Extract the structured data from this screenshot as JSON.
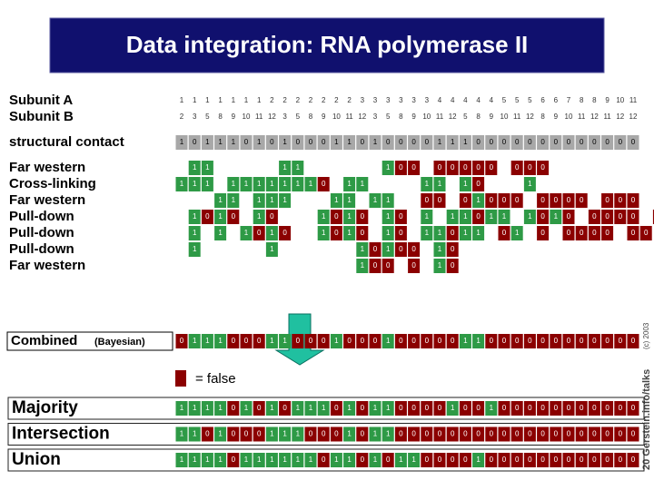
{
  "title": "Data integration: RNA polymerase II",
  "subunit_a": {
    "label": "Subunit A",
    "values": [
      1,
      1,
      1,
      1,
      1,
      1,
      1,
      2,
      2,
      2,
      2,
      2,
      2,
      2,
      3,
      3,
      3,
      3,
      3,
      3,
      4,
      4,
      4,
      4,
      4,
      5,
      5,
      5,
      6,
      6,
      7,
      8,
      8,
      9,
      10,
      11
    ]
  },
  "subunit_b": {
    "label": "Subunit B",
    "values": [
      2,
      3,
      5,
      8,
      9,
      10,
      11,
      12,
      3,
      5,
      8,
      9,
      10,
      11,
      12,
      3,
      5,
      8,
      9,
      10,
      11,
      12,
      5,
      8,
      9,
      10,
      11,
      12,
      8,
      9,
      10,
      11,
      12,
      11,
      12,
      12
    ]
  },
  "structural": {
    "label": "structural contact",
    "cells": "101110101000110100001110000000000000"
  },
  "evidence": [
    {
      "label": "Far western",
      "cells": " 11     11      100 00000 000      "
    },
    {
      "label": "Cross-linking",
      "cells": "111 11111110 11    11 10   1       "
    },
    {
      "label": "Far western",
      "cells": "   11 111   11 11  00 01000 0000 000 "
    },
    {
      "label": "Pull-down",
      "cells": " 1010 10   1010 10 1 11011 1010 0000 010 00 0"
    },
    {
      "label": "Pull-down",
      "cells": " 1 1 1010  1010 10 11011 01 0 0000 00 0"
    },
    {
      "label": "Pull-down",
      "cells": " 1     1      10100 10"
    },
    {
      "label": "Far western",
      "cells": "              100 0 10"
    }
  ],
  "combined": {
    "label": "Combined",
    "sublabel": "(Bayesian)",
    "cells": "011100011000100010000011000000000000"
  },
  "legend": "= false",
  "results": [
    {
      "label": "Majority",
      "cells": "111101010111010110000100100000000000"
    },
    {
      "label": "Intersection",
      "cells": "110100011100010110000000000000000000"
    },
    {
      "label": "Union",
      "cells": "111101111110110101100001000000000000"
    }
  ],
  "footer": "20 Gerstein.info/talks",
  "copyright": "(c) 2003"
}
